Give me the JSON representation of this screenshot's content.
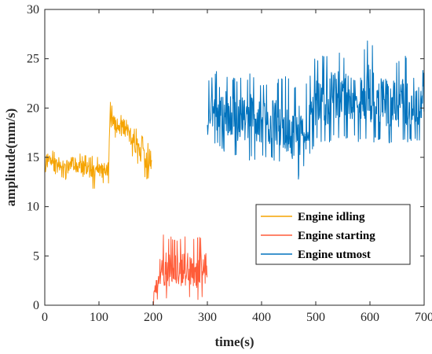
{
  "chart_data": {
    "type": "line",
    "title": "",
    "xlabel": "time(s)",
    "ylabel": "amplitude(mm/s)",
    "xlim": [
      0,
      700
    ],
    "ylim": [
      0,
      30
    ],
    "xticks": [
      "0",
      "100",
      "200",
      "300",
      "400",
      "500",
      "600",
      "700"
    ],
    "yticks": [
      "0",
      "5",
      "10",
      "15",
      "20",
      "25",
      "30"
    ],
    "grid": false,
    "legend_position": "lower-right",
    "series": [
      {
        "name": "Engine idling",
        "color": "#F5A300",
        "x": [
          0,
          10,
          20,
          30,
          40,
          50,
          60,
          70,
          80,
          90,
          100,
          110,
          118,
          120,
          130,
          140,
          150,
          160,
          170,
          180,
          190,
          198
        ],
        "y": [
          14.2,
          14.5,
          14.0,
          14.6,
          14.1,
          14.4,
          14.3,
          13.8,
          14.0,
          13.5,
          13.9,
          13.7,
          13.9,
          18.6,
          18.3,
          17.9,
          18.4,
          17.0,
          16.2,
          15.4,
          14.8,
          14.0
        ],
        "min": [
          12.3,
          13.2,
          12.6,
          12.9,
          12.7,
          12.8,
          12.6,
          12.3,
          12.4,
          11.7,
          12.3,
          12.2,
          12.4,
          17.2,
          16.9,
          16.5,
          15.8,
          15.0,
          14.4,
          13.3,
          12.7,
          12.9
        ],
        "max": [
          16.9,
          15.8,
          15.6,
          15.9,
          15.2,
          15.6,
          15.5,
          15.3,
          15.1,
          15.2,
          15.0,
          15.1,
          15.0,
          20.8,
          19.9,
          19.3,
          19.6,
          18.4,
          17.8,
          17.2,
          16.5,
          15.2
        ]
      },
      {
        "name": "Engine starting",
        "color": "#FF5C39",
        "x": [
          200,
          210,
          220,
          230,
          240,
          250,
          260,
          270,
          280,
          290,
          300
        ],
        "y": [
          0.3,
          3.0,
          3.2,
          3.5,
          3.3,
          3.6,
          3.1,
          3.4,
          3.2,
          3.5,
          4.0
        ],
        "min": [
          0.0,
          0.5,
          0.4,
          0.6,
          0.7,
          0.5,
          0.4,
          0.8,
          0.5,
          0.6,
          0.9
        ],
        "max": [
          1.8,
          6.8,
          7.2,
          7.1,
          6.9,
          7.2,
          7.0,
          7.2,
          6.8,
          7.2,
          7.1
        ]
      },
      {
        "name": "Engine utmost",
        "color": "#0072BD",
        "x": [
          300,
          320,
          340,
          360,
          380,
          400,
          420,
          440,
          460,
          480,
          500,
          520,
          540,
          560,
          580,
          600,
          620,
          640,
          660,
          680,
          700
        ],
        "y": [
          18.5,
          19.6,
          19.0,
          18.8,
          19.3,
          18.5,
          18.1,
          17.9,
          17.8,
          17.4,
          20.5,
          20.8,
          21.2,
          21.0,
          20.8,
          21.0,
          20.7,
          20.4,
          20.5,
          20.6,
          20.3
        ],
        "min": [
          16.1,
          16.0,
          15.1,
          14.9,
          14.5,
          14.8,
          14.6,
          14.2,
          11.6,
          13.9,
          16.5,
          16.2,
          17.0,
          16.8,
          16.5,
          16.6,
          16.3,
          16.1,
          16.2,
          16.4,
          16.2
        ],
        "max": [
          22.5,
          24.6,
          23.4,
          23.0,
          23.6,
          22.8,
          23.2,
          23.4,
          22.7,
          22.1,
          25.4,
          25.6,
          26.4,
          25.2,
          25.4,
          27.7,
          25.2,
          24.8,
          25.0,
          26.6,
          23.7
        ]
      }
    ]
  }
}
